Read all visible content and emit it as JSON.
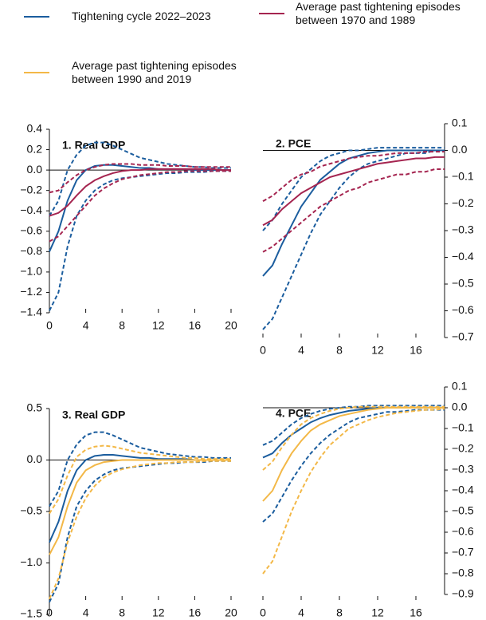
{
  "legend": [
    {
      "name": "Tightening cycle 2022–2023",
      "color": "#1b5d9e"
    },
    {
      "name": "Average past tightening episodes between 1970 and 1989",
      "color": "#a52550"
    },
    {
      "name": "Average past tightening episodes between 1990 and 2019",
      "color": "#f3b847"
    }
  ],
  "chart_data": [
    {
      "type": "line",
      "title": "1. Real GDP",
      "yaxis_side": "left",
      "x": [
        0,
        1,
        2,
        3,
        4,
        5,
        6,
        7,
        8,
        9,
        10,
        11,
        12,
        13,
        14,
        15,
        16,
        17,
        18,
        19,
        20
      ],
      "xlim": [
        0,
        20
      ],
      "xticks": [
        0,
        4,
        8,
        12,
        16,
        20
      ],
      "ylim": [
        -1.4,
        0.4
      ],
      "yticks": [
        0.4,
        0.2,
        {
          "value": 0,
          "label": "0.0"
        },
        {
          "value": -0.2,
          "label": "−0.2"
        },
        {
          "value": -0.4,
          "label": "−0.4"
        },
        {
          "value": -0.6,
          "label": "−0.6"
        },
        {
          "value": -0.8,
          "label": "−0.8"
        },
        {
          "value": -1,
          "label": "−1.0"
        },
        {
          "value": -1.2,
          "label": "−1.2"
        },
        {
          "value": -1.4,
          "label": "−1.4"
        }
      ],
      "series": [
        {
          "name": "Tightening cycle 2022–2023",
          "color": "#1b5d9e",
          "values": [
            -0.8,
            -0.6,
            -0.3,
            -0.1,
            0,
            0.04,
            0.05,
            0.05,
            0.04,
            0.03,
            0.02,
            0.02,
            0.01,
            0.01,
            0.01,
            0.01,
            0,
            0,
            0,
            0,
            0
          ],
          "upper": [
            -0.45,
            -0.3,
            0,
            0.15,
            0.24,
            0.27,
            0.27,
            0.24,
            0.2,
            0.16,
            0.12,
            0.1,
            0.08,
            0.06,
            0.05,
            0.04,
            0.03,
            0.03,
            0.02,
            0.02,
            0.02
          ],
          "lower": [
            -1.38,
            -1.2,
            -0.75,
            -0.45,
            -0.3,
            -0.2,
            -0.14,
            -0.1,
            -0.08,
            -0.07,
            -0.06,
            -0.05,
            -0.04,
            -0.03,
            -0.03,
            -0.02,
            -0.02,
            -0.02,
            -0.01,
            -0.01,
            -0.01
          ]
        },
        {
          "name": "Average past tightening episodes between 1970 and 1989",
          "color": "#a52550",
          "values": [
            -0.45,
            -0.42,
            -0.35,
            -0.25,
            -0.16,
            -0.1,
            -0.06,
            -0.03,
            -0.01,
            0,
            0,
            0.01,
            0.01,
            0.01,
            0.01,
            0.01,
            0.01,
            0.01,
            0.01,
            0,
            0
          ],
          "upper": [
            -0.22,
            -0.2,
            -0.12,
            -0.05,
            0,
            0.03,
            0.05,
            0.06,
            0.06,
            0.06,
            0.05,
            0.05,
            0.05,
            0.04,
            0.04,
            0.04,
            0.03,
            0.03,
            0.03,
            0.03,
            0.03
          ],
          "lower": [
            -0.7,
            -0.65,
            -0.55,
            -0.45,
            -0.35,
            -0.25,
            -0.18,
            -0.13,
            -0.09,
            -0.07,
            -0.05,
            -0.04,
            -0.03,
            -0.02,
            -0.02,
            -0.01,
            -0.01,
            -0.01,
            -0.01,
            -0.01,
            -0.01
          ]
        }
      ]
    },
    {
      "type": "line",
      "title": "2. PCE",
      "yaxis_side": "right",
      "x": [
        0,
        1,
        2,
        3,
        4,
        5,
        6,
        7,
        8,
        9,
        10,
        11,
        12,
        13,
        14,
        15,
        16,
        17,
        18,
        19
      ],
      "xlim": [
        0,
        19
      ],
      "xticks": [
        0,
        4,
        8,
        12,
        16
      ],
      "ylim": [
        -0.7,
        0.1
      ],
      "yticks": [
        0.1,
        {
          "value": 0,
          "label": "0.0"
        },
        {
          "value": -0.1,
          "label": "−0.1"
        },
        {
          "value": -0.2,
          "label": "−0.2"
        },
        {
          "value": -0.3,
          "label": "−0.3"
        },
        {
          "value": -0.4,
          "label": "−0.4"
        },
        {
          "value": -0.5,
          "label": "−0.5"
        },
        {
          "value": -0.6,
          "label": "−0.6"
        },
        {
          "value": -0.7,
          "label": "−0.7"
        }
      ],
      "series": [
        {
          "name": "Tightening cycle 2022–2023",
          "color": "#1b5d9e",
          "values": [
            -0.47,
            -0.43,
            -0.35,
            -0.28,
            -0.21,
            -0.16,
            -0.11,
            -0.08,
            -0.05,
            -0.03,
            -0.02,
            -0.01,
            -0.005,
            0,
            0,
            0,
            0,
            0,
            0,
            0
          ],
          "upper": [
            -0.3,
            -0.26,
            -0.2,
            -0.15,
            -0.1,
            -0.07,
            -0.04,
            -0.02,
            -0.01,
            0,
            0,
            0.005,
            0.01,
            0.01,
            0.01,
            0.01,
            0.01,
            0.01,
            0.01,
            0.01
          ],
          "lower": [
            -0.67,
            -0.63,
            -0.55,
            -0.47,
            -0.39,
            -0.31,
            -0.24,
            -0.19,
            -0.14,
            -0.1,
            -0.07,
            -0.05,
            -0.04,
            -0.03,
            -0.02,
            -0.01,
            -0.01,
            -0.01,
            0,
            0
          ]
        },
        {
          "name": "Average past tightening episodes between 1970 and 1989",
          "color": "#a52550",
          "values": [
            -0.28,
            -0.26,
            -0.22,
            -0.19,
            -0.16,
            -0.14,
            -0.12,
            -0.1,
            -0.09,
            -0.08,
            -0.07,
            -0.06,
            -0.05,
            -0.045,
            -0.04,
            -0.035,
            -0.03,
            -0.03,
            -0.025,
            -0.025
          ],
          "upper": [
            -0.19,
            -0.17,
            -0.14,
            -0.11,
            -0.09,
            -0.08,
            -0.06,
            -0.05,
            -0.04,
            -0.03,
            -0.025,
            -0.02,
            -0.02,
            -0.015,
            -0.01,
            -0.01,
            -0.01,
            -0.005,
            -0.005,
            -0.005
          ],
          "lower": [
            -0.38,
            -0.36,
            -0.33,
            -0.3,
            -0.27,
            -0.24,
            -0.21,
            -0.19,
            -0.17,
            -0.15,
            -0.14,
            -0.12,
            -0.11,
            -0.1,
            -0.09,
            -0.09,
            -0.08,
            -0.08,
            -0.07,
            -0.07
          ]
        }
      ]
    },
    {
      "type": "line",
      "title": "3. Real GDP",
      "yaxis_side": "left",
      "x": [
        0,
        1,
        2,
        3,
        4,
        5,
        6,
        7,
        8,
        9,
        10,
        11,
        12,
        13,
        14,
        15,
        16,
        17,
        18,
        19,
        20
      ],
      "xlim": [
        0,
        20
      ],
      "xticks": [
        0,
        4,
        8,
        12,
        16,
        20
      ],
      "ylim": [
        -1.5,
        0.5
      ],
      "yticks": [
        0.5,
        {
          "value": 0,
          "label": "0.0"
        },
        {
          "value": -0.5,
          "label": "−0.5"
        },
        {
          "value": -1,
          "label": "−1.0"
        },
        {
          "value": -1.5,
          "label": "−1.5"
        }
      ],
      "series": [
        {
          "name": "Tightening cycle 2022–2023",
          "color": "#1b5d9e",
          "values": [
            -0.8,
            -0.6,
            -0.3,
            -0.1,
            0,
            0.04,
            0.05,
            0.05,
            0.04,
            0.03,
            0.02,
            0.02,
            0.01,
            0.01,
            0.01,
            0.01,
            0,
            0,
            0,
            0,
            0
          ],
          "upper": [
            -0.45,
            -0.3,
            0,
            0.15,
            0.24,
            0.27,
            0.27,
            0.24,
            0.2,
            0.16,
            0.12,
            0.1,
            0.08,
            0.06,
            0.05,
            0.04,
            0.03,
            0.03,
            0.02,
            0.02,
            0.02
          ],
          "lower": [
            -1.38,
            -1.2,
            -0.75,
            -0.45,
            -0.3,
            -0.2,
            -0.14,
            -0.1,
            -0.08,
            -0.07,
            -0.06,
            -0.05,
            -0.04,
            -0.03,
            -0.03,
            -0.02,
            -0.02,
            -0.02,
            -0.01,
            -0.01,
            -0.01
          ]
        },
        {
          "name": "Average past tightening episodes between 1990 and 2019",
          "color": "#f3b847",
          "values": [
            -0.92,
            -0.75,
            -0.45,
            -0.22,
            -0.1,
            -0.05,
            -0.02,
            -0.01,
            0,
            0,
            0,
            0,
            0,
            0,
            0,
            0,
            0,
            0,
            0,
            0,
            0
          ],
          "upper": [
            -0.52,
            -0.38,
            -0.15,
            0.03,
            0.1,
            0.13,
            0.14,
            0.13,
            0.11,
            0.09,
            0.07,
            0.06,
            0.05,
            0.04,
            0.03,
            0.02,
            0.02,
            0.01,
            0.01,
            0.01,
            0.01
          ],
          "lower": [
            -1.35,
            -1.15,
            -0.8,
            -0.55,
            -0.37,
            -0.25,
            -0.17,
            -0.12,
            -0.09,
            -0.07,
            -0.05,
            -0.04,
            -0.03,
            -0.03,
            -0.02,
            -0.02,
            -0.02,
            -0.01,
            -0.01,
            -0.01,
            -0.01
          ]
        }
      ]
    },
    {
      "type": "line",
      "title": "4. PCE",
      "yaxis_side": "right",
      "x": [
        0,
        1,
        2,
        3,
        4,
        5,
        6,
        7,
        8,
        9,
        10,
        11,
        12,
        13,
        14,
        15,
        16,
        17,
        18,
        19
      ],
      "xlim": [
        0,
        19
      ],
      "xticks": [
        0,
        4,
        8,
        12,
        16
      ],
      "ylim": [
        -0.9,
        0.1
      ],
      "yticks": [
        0.1,
        {
          "value": 0,
          "label": "0.0"
        },
        {
          "value": -0.1,
          "label": "−0.1"
        },
        {
          "value": -0.2,
          "label": "−0.2"
        },
        {
          "value": -0.3,
          "label": "−0.3"
        },
        {
          "value": -0.4,
          "label": "−0.4"
        },
        {
          "value": -0.5,
          "label": "−0.5"
        },
        {
          "value": -0.6,
          "label": "−0.6"
        },
        {
          "value": -0.7,
          "label": "−0.7"
        },
        {
          "value": -0.8,
          "label": "−0.8"
        },
        {
          "value": -0.9,
          "label": "−0.9"
        }
      ],
      "series": [
        {
          "name": "Tightening cycle 2022–2023",
          "color": "#1b5d9e",
          "values": [
            -0.24,
            -0.22,
            -0.17,
            -0.13,
            -0.1,
            -0.07,
            -0.05,
            -0.035,
            -0.025,
            -0.015,
            -0.01,
            -0.005,
            0,
            0,
            0,
            0,
            0,
            0,
            0,
            0
          ],
          "upper": [
            -0.18,
            -0.16,
            -0.12,
            -0.08,
            -0.05,
            -0.03,
            -0.015,
            -0.005,
            0,
            0.005,
            0.005,
            0.01,
            0.01,
            0.01,
            0.01,
            0.01,
            0.01,
            0.01,
            0.01,
            0.01
          ],
          "lower": [
            -0.55,
            -0.51,
            -0.43,
            -0.35,
            -0.28,
            -0.22,
            -0.17,
            -0.13,
            -0.1,
            -0.07,
            -0.05,
            -0.04,
            -0.03,
            -0.02,
            -0.02,
            -0.015,
            -0.01,
            -0.01,
            -0.01,
            -0.01
          ]
        },
        {
          "name": "Average past tightening episodes between 1990 and 2019",
          "color": "#f3b847",
          "values": [
            -0.45,
            -0.4,
            -0.3,
            -0.22,
            -0.16,
            -0.11,
            -0.08,
            -0.06,
            -0.04,
            -0.03,
            -0.02,
            -0.01,
            -0.005,
            0,
            0,
            0,
            0,
            0,
            0,
            0
          ],
          "upper": [
            -0.3,
            -0.26,
            -0.19,
            -0.13,
            -0.08,
            -0.05,
            -0.03,
            -0.015,
            -0.005,
            0,
            0.005,
            0.005,
            0.005,
            0.005,
            0.005,
            0.005,
            0.005,
            0.005,
            0.005,
            0.005
          ],
          "lower": [
            -0.8,
            -0.74,
            -0.62,
            -0.5,
            -0.4,
            -0.31,
            -0.24,
            -0.18,
            -0.14,
            -0.1,
            -0.08,
            -0.06,
            -0.045,
            -0.035,
            -0.025,
            -0.02,
            -0.015,
            -0.01,
            -0.01,
            -0.005
          ]
        }
      ]
    }
  ]
}
